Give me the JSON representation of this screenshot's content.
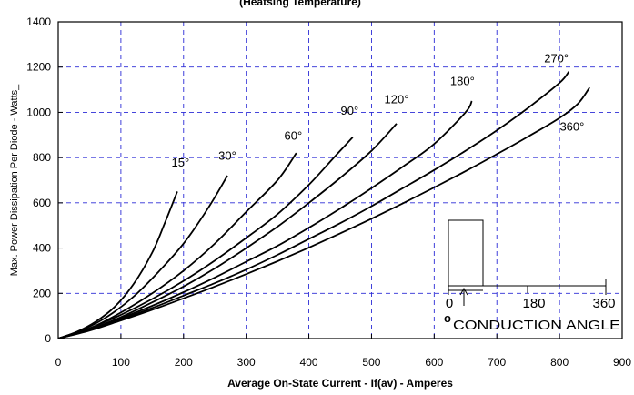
{
  "chart_data": {
    "type": "line",
    "title": "(Heatsing Temperature)",
    "xlabel": "Average On-State Current - If(av) - Amperes",
    "ylabel": "Max. Power Dissipation Per Diode - Watts_",
    "xlim": [
      0,
      900
    ],
    "ylim": [
      0,
      1400
    ],
    "x_ticks": [
      "0",
      "100",
      "200",
      "300",
      "400",
      "500",
      "600",
      "700",
      "800",
      "900"
    ],
    "y_ticks": [
      "0",
      "200",
      "400",
      "600",
      "800",
      "1000",
      "1200",
      "1400"
    ],
    "grid": true,
    "series": [
      {
        "name": "15°",
        "points": [
          [
            0,
            0
          ],
          [
            30,
            30
          ],
          [
            60,
            75
          ],
          [
            90,
            140
          ],
          [
            120,
            240
          ],
          [
            150,
            380
          ],
          [
            170,
            510
          ],
          [
            190,
            650
          ]
        ]
      },
      {
        "name": "30°",
        "points": [
          [
            0,
            0
          ],
          [
            40,
            40
          ],
          [
            80,
            100
          ],
          [
            120,
            185
          ],
          [
            160,
            295
          ],
          [
            200,
            420
          ],
          [
            240,
            580
          ],
          [
            270,
            720
          ]
        ]
      },
      {
        "name": "60°",
        "points": [
          [
            0,
            0
          ],
          [
            50,
            45
          ],
          [
            100,
            115
          ],
          [
            150,
            200
          ],
          [
            200,
            300
          ],
          [
            250,
            420
          ],
          [
            300,
            560
          ],
          [
            350,
            700
          ],
          [
            380,
            820
          ]
        ]
      },
      {
        "name": "90°",
        "points": [
          [
            0,
            0
          ],
          [
            50,
            45
          ],
          [
            100,
            105
          ],
          [
            150,
            175
          ],
          [
            200,
            255
          ],
          [
            250,
            345
          ],
          [
            300,
            445
          ],
          [
            350,
            550
          ],
          [
            400,
            680
          ],
          [
            440,
            800
          ],
          [
            470,
            890
          ]
        ]
      },
      {
        "name": "120°",
        "points": [
          [
            0,
            0
          ],
          [
            50,
            40
          ],
          [
            100,
            95
          ],
          [
            150,
            160
          ],
          [
            200,
            230
          ],
          [
            250,
            310
          ],
          [
            300,
            400
          ],
          [
            350,
            495
          ],
          [
            400,
            600
          ],
          [
            450,
            710
          ],
          [
            500,
            830
          ],
          [
            540,
            950
          ]
        ]
      },
      {
        "name": "180°",
        "points": [
          [
            0,
            0
          ],
          [
            50,
            40
          ],
          [
            100,
            90
          ],
          [
            150,
            145
          ],
          [
            200,
            205
          ],
          [
            250,
            270
          ],
          [
            300,
            340
          ],
          [
            350,
            410
          ],
          [
            400,
            490
          ],
          [
            450,
            575
          ],
          [
            500,
            665
          ],
          [
            550,
            760
          ],
          [
            600,
            860
          ],
          [
            650,
            1000
          ],
          [
            660,
            1050
          ]
        ]
      },
      {
        "name": "270°",
        "points": [
          [
            0,
            0
          ],
          [
            50,
            38
          ],
          [
            100,
            85
          ],
          [
            150,
            135
          ],
          [
            200,
            190
          ],
          [
            250,
            245
          ],
          [
            300,
            305
          ],
          [
            350,
            370
          ],
          [
            400,
            440
          ],
          [
            450,
            510
          ],
          [
            500,
            585
          ],
          [
            550,
            665
          ],
          [
            600,
            745
          ],
          [
            650,
            830
          ],
          [
            700,
            920
          ],
          [
            750,
            1020
          ],
          [
            800,
            1130
          ],
          [
            815,
            1180
          ]
        ]
      },
      {
        "name": "360°",
        "points": [
          [
            0,
            0
          ],
          [
            50,
            35
          ],
          [
            100,
            80
          ],
          [
            150,
            127
          ],
          [
            200,
            178
          ],
          [
            250,
            230
          ],
          [
            300,
            285
          ],
          [
            350,
            342
          ],
          [
            400,
            402
          ],
          [
            450,
            465
          ],
          [
            500,
            530
          ],
          [
            550,
            598
          ],
          [
            600,
            668
          ],
          [
            650,
            740
          ],
          [
            700,
            815
          ],
          [
            750,
            893
          ],
          [
            800,
            975
          ],
          [
            830,
            1040
          ],
          [
            848,
            1110
          ]
        ]
      }
    ],
    "curve_labels": [
      {
        "text": "15°",
        "x": 195,
        "y": 760
      },
      {
        "text": "30°",
        "x": 270,
        "y": 790
      },
      {
        "text": "60°",
        "x": 375,
        "y": 880
      },
      {
        "text": "90°",
        "x": 465,
        "y": 990
      },
      {
        "text": "120°",
        "x": 540,
        "y": 1040
      },
      {
        "text": "180°",
        "x": 645,
        "y": 1120
      },
      {
        "text": "270°",
        "x": 795,
        "y": 1220
      },
      {
        "text": "360°",
        "x": 820,
        "y": 920
      }
    ],
    "inset": {
      "axis_labels": [
        "0",
        "180",
        "360"
      ],
      "caption": "CONDUCTION ANGLE",
      "symbol": "o"
    }
  }
}
